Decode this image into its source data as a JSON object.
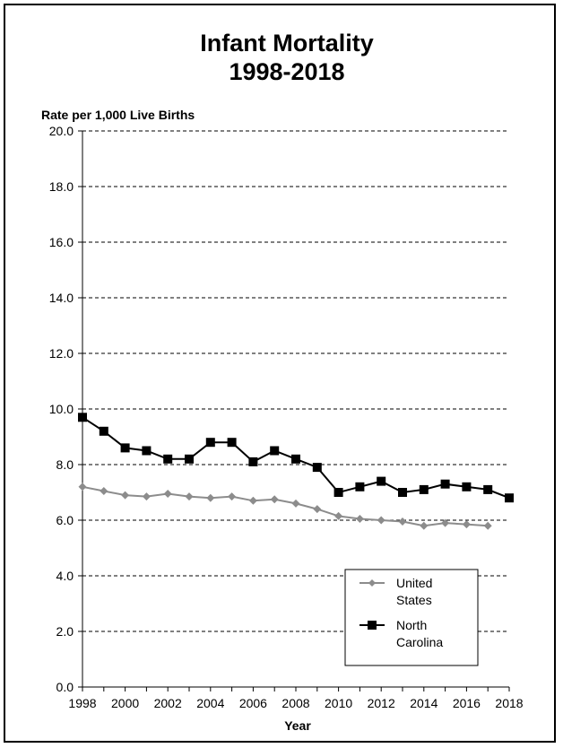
{
  "chart_data": {
    "type": "line",
    "title_lines": [
      "Infant Mortality",
      "1998-2018"
    ],
    "ylabel": "Rate per 1,000 Live Births",
    "xlabel": "Year",
    "ylim": [
      0,
      20
    ],
    "yticks": [
      "0.0",
      "2.0",
      "4.0",
      "6.0",
      "8.0",
      "10.0",
      "12.0",
      "14.0",
      "16.0",
      "18.0",
      "20.0"
    ],
    "xlim": [
      1998,
      2018
    ],
    "xticks": [
      "1998",
      "2000",
      "2002",
      "2004",
      "2006",
      "2008",
      "2010",
      "2012",
      "2014",
      "2016",
      "2018"
    ],
    "grid": "horizontal-dashed",
    "legend_position": "bottom-right",
    "series": [
      {
        "name_lines": [
          "United",
          "States"
        ],
        "color": "#8c8c8c",
        "marker": "diamond",
        "x": [
          1998,
          1999,
          2000,
          2001,
          2002,
          2003,
          2004,
          2005,
          2006,
          2007,
          2008,
          2009,
          2010,
          2011,
          2012,
          2013,
          2014,
          2015,
          2016,
          2017
        ],
        "values": [
          7.2,
          7.05,
          6.9,
          6.85,
          6.95,
          6.85,
          6.8,
          6.85,
          6.7,
          6.75,
          6.6,
          6.4,
          6.15,
          6.05,
          6.0,
          5.95,
          5.8,
          5.9,
          5.85,
          5.8
        ]
      },
      {
        "name_lines": [
          "North",
          "Carolina"
        ],
        "color": "#000000",
        "marker": "square",
        "x": [
          1998,
          1999,
          2000,
          2001,
          2002,
          2003,
          2004,
          2005,
          2006,
          2007,
          2008,
          2009,
          2010,
          2011,
          2012,
          2013,
          2014,
          2015,
          2016,
          2017,
          2018
        ],
        "values": [
          9.7,
          9.2,
          8.6,
          8.5,
          8.2,
          8.2,
          8.8,
          8.8,
          8.1,
          8.5,
          8.2,
          7.9,
          7.0,
          7.2,
          7.4,
          7.0,
          7.1,
          7.3,
          7.2,
          7.1,
          6.8
        ]
      }
    ]
  }
}
